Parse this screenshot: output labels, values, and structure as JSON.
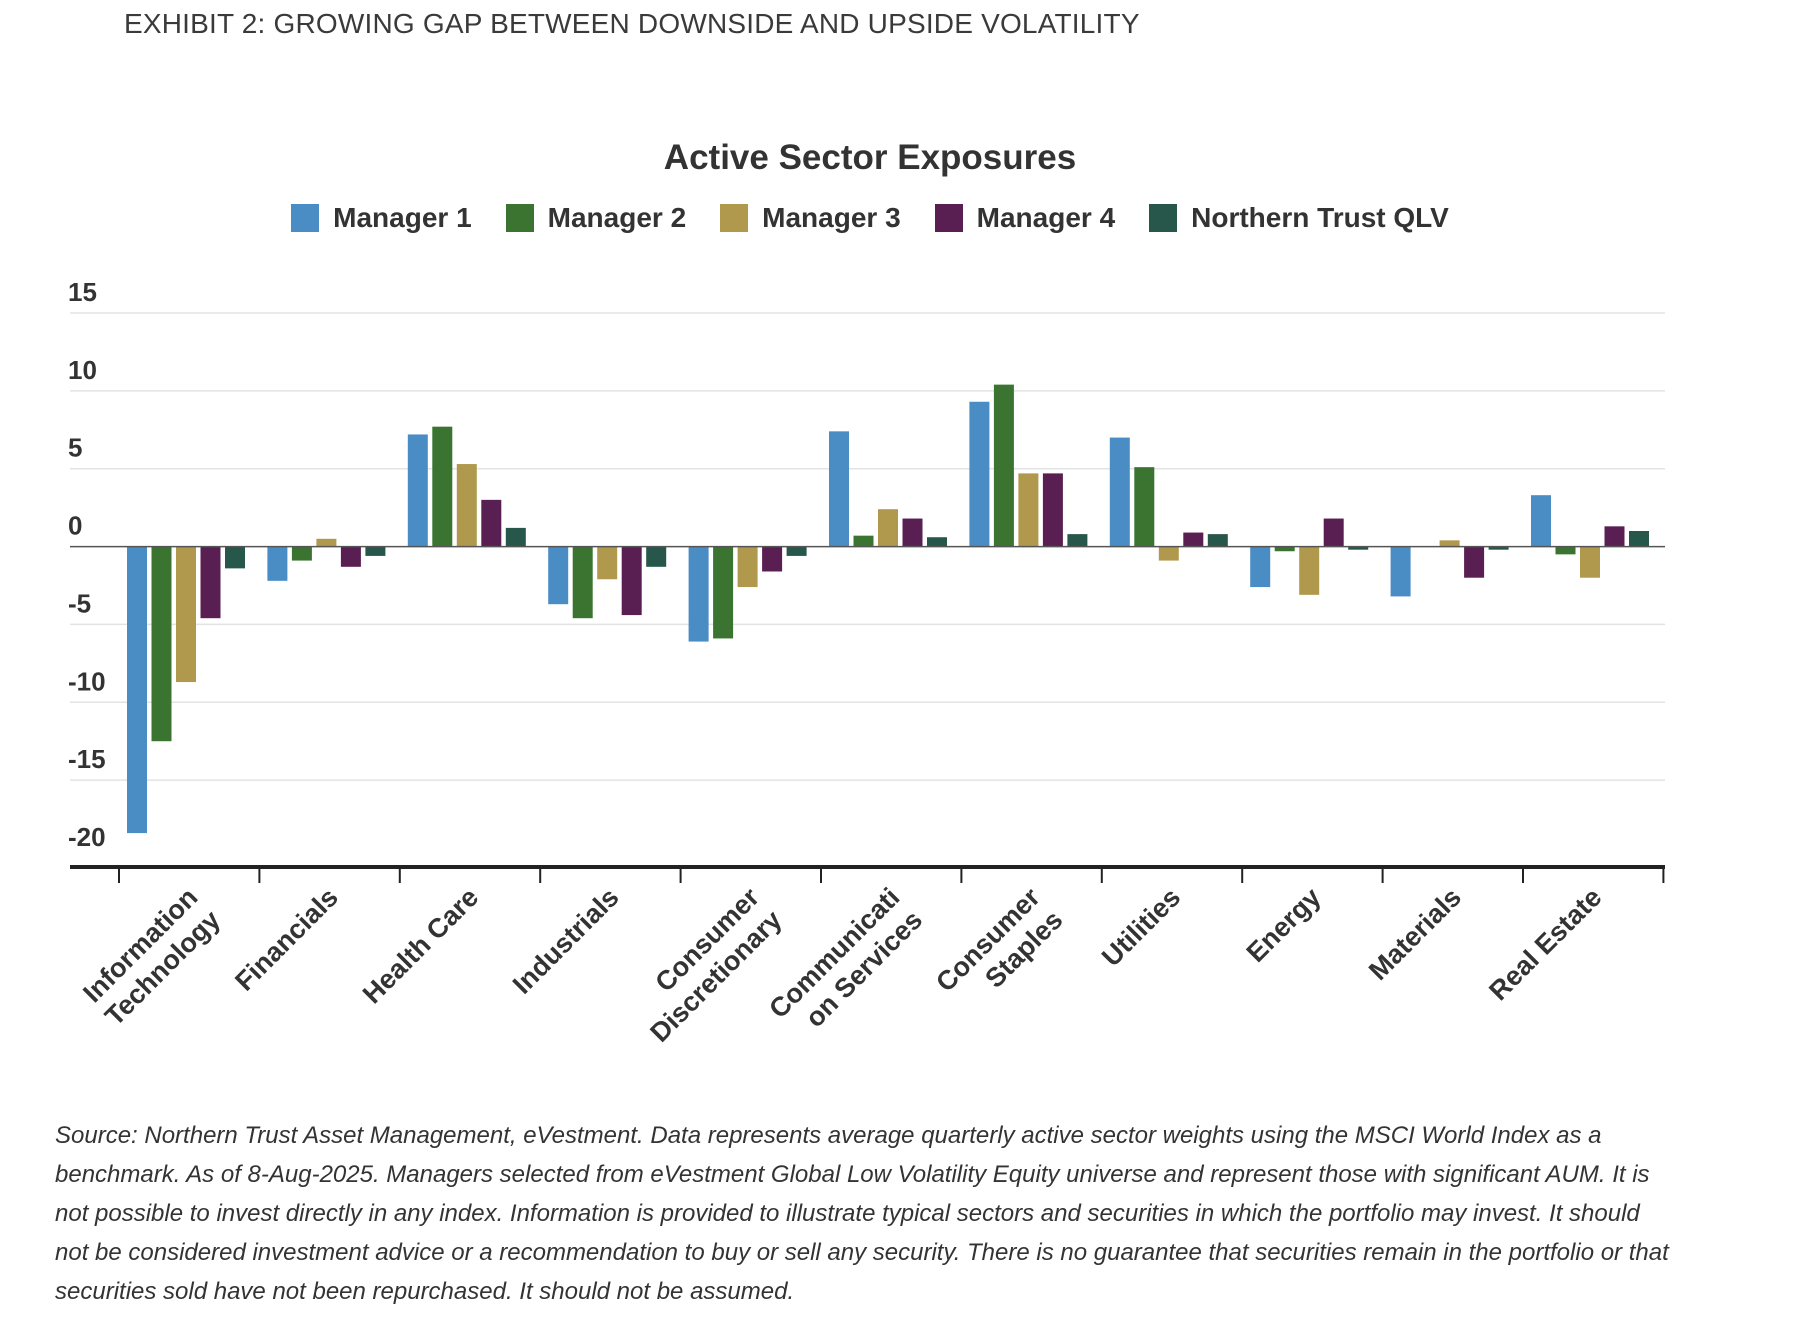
{
  "exhibit_title": "EXHIBIT 2: GROWING GAP BETWEEN DOWNSIDE AND UPSIDE VOLATILITY",
  "footnote": "Source: Northern Trust Asset Management, eVestment. Data represents average quarterly active sector weights using the MSCI World Index as a benchmark. As of 8-Aug-2025. Managers selected from eVestment Global Low Volatility Equity universe and represent those with significant AUM. It is not possible to invest directly in any index. Information is provided to illustrate typical sectors and securities in which the portfolio may invest. It should not be considered investment advice or a recommendation to buy or sell any security. There is no guarantee that securities remain in the portfolio or that securities sold have not been repurchased. It should not be assumed.",
  "chart_data": {
    "type": "bar",
    "title": "Active Sector Exposures",
    "xlabel": "",
    "ylabel": "",
    "ylim": [
      -20,
      15
    ],
    "yticks": [
      15,
      10,
      5,
      0,
      -5,
      -10,
      -15,
      -20
    ],
    "grid": true,
    "legend_position": "top-center",
    "categories": [
      [
        "Information",
        "Technology"
      ],
      [
        "Financials"
      ],
      [
        "Health Care"
      ],
      [
        "Industrials"
      ],
      [
        "Consumer",
        "Discretionary"
      ],
      [
        "Communicati",
        "on Services"
      ],
      [
        "Consumer",
        "Staples"
      ],
      [
        "Utilities"
      ],
      [
        "Energy"
      ],
      [
        "Materials"
      ],
      [
        "Real Estate"
      ]
    ],
    "series": [
      {
        "name": "Manager 1",
        "color": "#4a8cc4",
        "values": [
          -18.4,
          -2.2,
          7.2,
          -3.7,
          -6.1,
          7.4,
          9.3,
          7.0,
          -2.6,
          -3.2,
          3.3
        ]
      },
      {
        "name": "Manager 2",
        "color": "#3a7430",
        "values": [
          -12.5,
          -0.9,
          7.7,
          -4.6,
          -5.9,
          0.7,
          10.4,
          5.1,
          -0.3,
          0.0,
          -0.5
        ]
      },
      {
        "name": "Manager 3",
        "color": "#b0994c",
        "values": [
          -8.7,
          0.5,
          5.3,
          -2.1,
          -2.6,
          2.4,
          4.7,
          -0.9,
          -3.1,
          0.4,
          -2.0
        ]
      },
      {
        "name": "Manager 4",
        "color": "#5a1f52",
        "values": [
          -4.6,
          -1.3,
          3.0,
          -4.4,
          -1.6,
          1.8,
          4.7,
          0.9,
          1.8,
          -2.0,
          1.3
        ]
      },
      {
        "name": "Northern Trust QLV",
        "color": "#27564a",
        "values": [
          -1.4,
          -0.6,
          1.2,
          -1.3,
          -0.6,
          0.6,
          0.8,
          0.8,
          -0.2,
          -0.2,
          1.0
        ]
      }
    ]
  }
}
